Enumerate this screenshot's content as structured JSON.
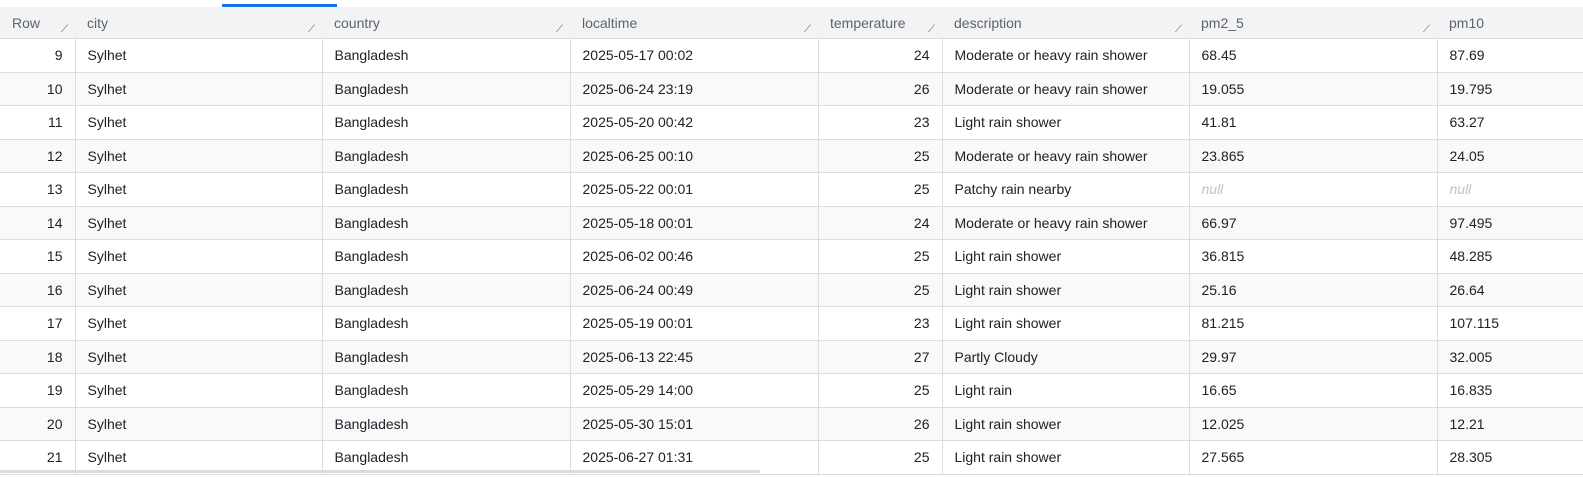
{
  "columns": {
    "row": "Row",
    "city": "city",
    "country": "country",
    "localtime": "localtime",
    "temperature": "temperature",
    "description": "description",
    "pm2_5": "pm2_5",
    "pm10": "pm10"
  },
  "rows": [
    {
      "row": "9",
      "city": "Sylhet",
      "country": "Bangladesh",
      "localtime": "2025-05-17 00:02",
      "temperature": "24",
      "description": "Moderate or heavy rain shower",
      "pm2_5": "68.45",
      "pm10": "87.69"
    },
    {
      "row": "10",
      "city": "Sylhet",
      "country": "Bangladesh",
      "localtime": "2025-06-24 23:19",
      "temperature": "26",
      "description": "Moderate or heavy rain shower",
      "pm2_5": "19.055",
      "pm10": "19.795"
    },
    {
      "row": "11",
      "city": "Sylhet",
      "country": "Bangladesh",
      "localtime": "2025-05-20 00:42",
      "temperature": "23",
      "description": "Light rain shower",
      "pm2_5": "41.81",
      "pm10": "63.27"
    },
    {
      "row": "12",
      "city": "Sylhet",
      "country": "Bangladesh",
      "localtime": "2025-06-25 00:10",
      "temperature": "25",
      "description": "Moderate or heavy rain shower",
      "pm2_5": "23.865",
      "pm10": "24.05"
    },
    {
      "row": "13",
      "city": "Sylhet",
      "country": "Bangladesh",
      "localtime": "2025-05-22 00:01",
      "temperature": "25",
      "description": "Patchy rain nearby",
      "pm2_5": "null",
      "pm10": "null"
    },
    {
      "row": "14",
      "city": "Sylhet",
      "country": "Bangladesh",
      "localtime": "2025-05-18 00:01",
      "temperature": "24",
      "description": "Moderate or heavy rain shower",
      "pm2_5": "66.97",
      "pm10": "97.495"
    },
    {
      "row": "15",
      "city": "Sylhet",
      "country": "Bangladesh",
      "localtime": "2025-06-02 00:46",
      "temperature": "25",
      "description": "Light rain shower",
      "pm2_5": "36.815",
      "pm10": "48.285"
    },
    {
      "row": "16",
      "city": "Sylhet",
      "country": "Bangladesh",
      "localtime": "2025-06-24 00:49",
      "temperature": "25",
      "description": "Light rain shower",
      "pm2_5": "25.16",
      "pm10": "26.64"
    },
    {
      "row": "17",
      "city": "Sylhet",
      "country": "Bangladesh",
      "localtime": "2025-05-19 00:01",
      "temperature": "23",
      "description": "Light rain shower",
      "pm2_5": "81.215",
      "pm10": "107.115"
    },
    {
      "row": "18",
      "city": "Sylhet",
      "country": "Bangladesh",
      "localtime": "2025-06-13 22:45",
      "temperature": "27",
      "description": "Partly Cloudy",
      "pm2_5": "29.97",
      "pm10": "32.005"
    },
    {
      "row": "19",
      "city": "Sylhet",
      "country": "Bangladesh",
      "localtime": "2025-05-29 14:00",
      "temperature": "25",
      "description": "Light rain",
      "pm2_5": "16.65",
      "pm10": "16.835"
    },
    {
      "row": "20",
      "city": "Sylhet",
      "country": "Bangladesh",
      "localtime": "2025-05-30 15:01",
      "temperature": "26",
      "description": "Light rain shower",
      "pm2_5": "12.025",
      "pm10": "12.21"
    },
    {
      "row": "21",
      "city": "Sylhet",
      "country": "Bangladesh",
      "localtime": "2025-06-27 01:31",
      "temperature": "25",
      "description": "Light rain shower",
      "pm2_5": "27.565",
      "pm10": "28.305"
    }
  ],
  "icons": {
    "column_resize": "resize-handle-icon"
  },
  "colors": {
    "accent": "#1a73e8",
    "header_bg": "#f1f3f4",
    "stripe_bg": "#f8f9fa",
    "border": "#dadce0",
    "null_text": "#bdc1c6"
  }
}
